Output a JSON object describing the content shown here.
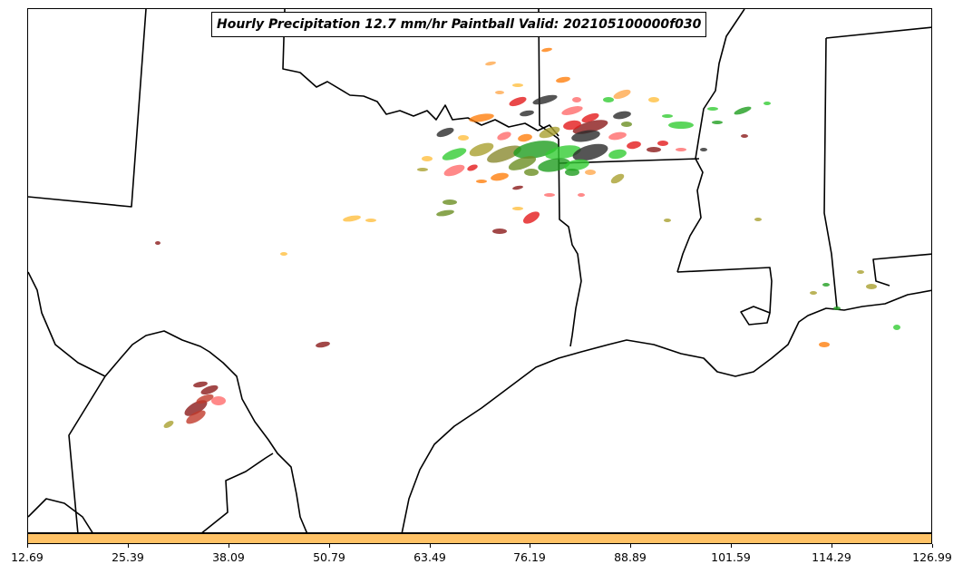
{
  "title": "Hourly Precipitation 12.7 mm/hr Paintball Valid: 202105100000f030",
  "colorbar": {
    "color": "#ffc266",
    "ticks": [
      "12.69",
      "25.39",
      "38.09",
      "50.79",
      "63.49",
      "76.19",
      "88.89",
      "101.59",
      "114.29",
      "126.99"
    ]
  },
  "member_colors": [
    "#ff6b6b",
    "#e41a1c",
    "#8b1a1a",
    "#2a2a2a",
    "#33cc33",
    "#1f9e1f",
    "#ffa94d",
    "#ff7f0e",
    "#ffbf40",
    "#a9a030",
    "#8a8a30",
    "#6b8e23",
    "#c0392b"
  ]
}
